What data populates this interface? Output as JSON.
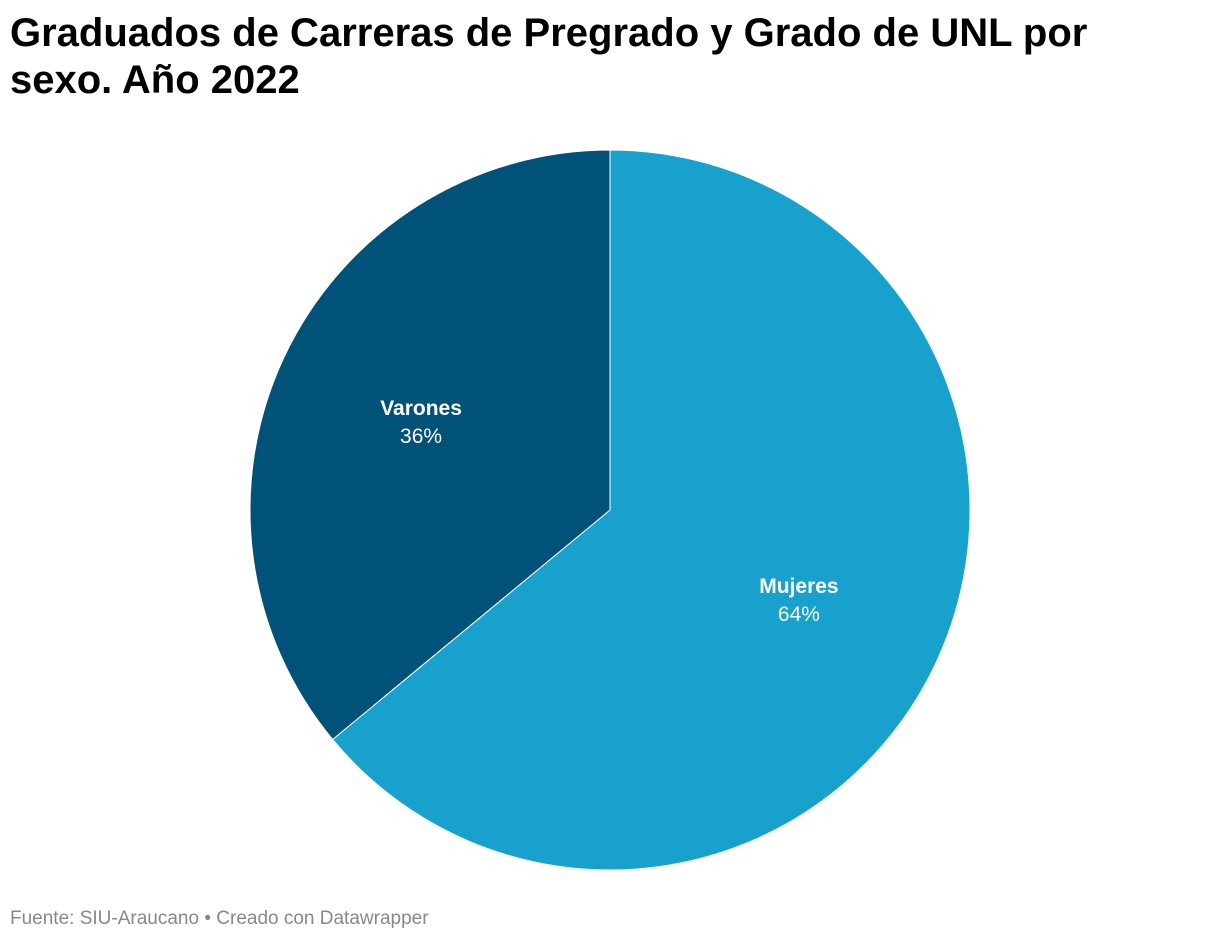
{
  "chart_data": {
    "type": "pie",
    "title": "Graduados de Carreras de Pregrado y Grado de UNL por sexo. Año 2022",
    "slices": [
      {
        "name": "Mujeres",
        "value": 64,
        "label": "64%",
        "color": "#18a1cd"
      },
      {
        "name": "Varones",
        "value": 36,
        "label": "36%",
        "color": "#015278"
      }
    ],
    "start_angle": "12 o'clock, clockwise",
    "legend": "none (labels on slices)"
  },
  "footer": {
    "source": "Fuente: SIU-Araucano",
    "separator": "•",
    "credit": "Creado con Datawrapper"
  }
}
